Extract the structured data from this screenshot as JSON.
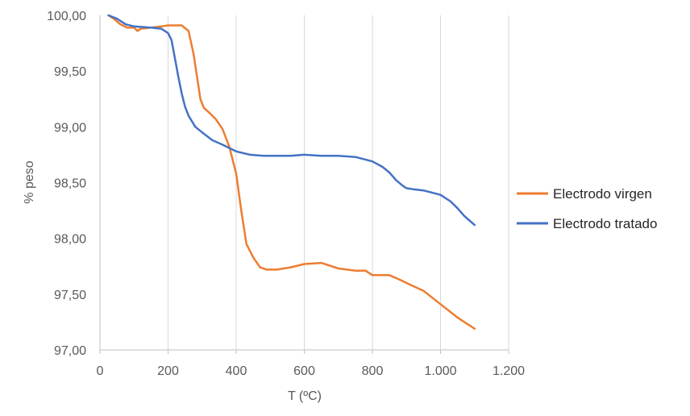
{
  "chart_data": {
    "type": "line",
    "title": "",
    "xlabel": "T (ºC)",
    "ylabel": "% peso",
    "xlim": [
      0,
      1200
    ],
    "ylim": [
      97.0,
      100.0
    ],
    "x_ticks": [
      0,
      200,
      400,
      600,
      800,
      1000,
      1200
    ],
    "x_tick_labels": [
      "0",
      "200",
      "400",
      "600",
      "800",
      "1.000",
      "1.200"
    ],
    "y_ticks": [
      97.0,
      97.5,
      98.0,
      98.5,
      99.0,
      99.5,
      100.0
    ],
    "y_tick_labels": [
      "97,00",
      "97,50",
      "98,00",
      "98,50",
      "99,00",
      "99,50",
      "100,00"
    ],
    "grid": "vertical",
    "legend_position": "right",
    "series": [
      {
        "name": "Electrodo virgen",
        "color": "#ED7D31",
        "x": [
          25,
          40,
          60,
          80,
          100,
          110,
          120,
          150,
          180,
          200,
          220,
          240,
          260,
          275,
          285,
          295,
          305,
          320,
          340,
          360,
          380,
          400,
          415,
          430,
          450,
          470,
          490,
          520,
          560,
          600,
          650,
          700,
          750,
          780,
          800,
          850,
          880,
          900,
          950,
          1000,
          1050,
          1100
        ],
        "y": [
          100.0,
          99.97,
          99.92,
          99.89,
          99.89,
          99.86,
          99.88,
          99.89,
          99.9,
          99.91,
          99.91,
          99.91,
          99.86,
          99.65,
          99.45,
          99.25,
          99.17,
          99.13,
          99.07,
          98.98,
          98.82,
          98.58,
          98.25,
          97.95,
          97.83,
          97.74,
          97.72,
          97.72,
          97.74,
          97.77,
          97.78,
          97.73,
          97.71,
          97.71,
          97.67,
          97.67,
          97.63,
          97.6,
          97.53,
          97.41,
          97.29,
          97.19
        ]
      },
      {
        "name": "Electrodo tratado",
        "color": "#4472C4",
        "x": [
          25,
          50,
          75,
          100,
          150,
          180,
          200,
          210,
          220,
          230,
          240,
          250,
          260,
          280,
          300,
          330,
          360,
          400,
          440,
          480,
          520,
          560,
          600,
          650,
          700,
          750,
          800,
          830,
          850,
          870,
          890,
          900,
          920,
          950,
          1000,
          1030,
          1050,
          1070,
          1100
        ],
        "y": [
          100.0,
          99.97,
          99.92,
          99.9,
          99.89,
          99.88,
          99.84,
          99.78,
          99.62,
          99.45,
          99.3,
          99.18,
          99.1,
          99.0,
          98.95,
          98.88,
          98.84,
          98.78,
          98.75,
          98.74,
          98.74,
          98.74,
          98.75,
          98.74,
          98.74,
          98.73,
          98.69,
          98.64,
          98.59,
          98.52,
          98.47,
          98.45,
          98.44,
          98.43,
          98.39,
          98.33,
          98.27,
          98.2,
          98.12
        ]
      }
    ]
  }
}
